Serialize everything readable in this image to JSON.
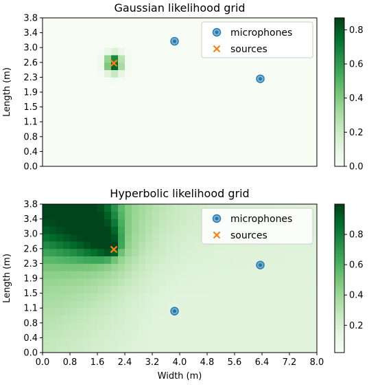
{
  "chart_data": [
    {
      "type": "heatmap",
      "title": "Gaussian likelihood grid",
      "xlabel": "",
      "ylabel": "Length (m)",
      "xlim": [
        0,
        8.0
      ],
      "ylim": [
        0,
        3.8
      ],
      "x_ticks": [],
      "y_ticks": [
        "0.0",
        "0.4",
        "0.8",
        "1.1",
        "1.5",
        "1.9",
        "2.3",
        "2.6",
        "3.0",
        "3.4",
        "3.8"
      ],
      "colormap": "Greens",
      "colorbar": {
        "range": [
          0,
          0.87
        ],
        "ticks": [
          "0.0",
          "0.2",
          "0.4",
          "0.6",
          "0.8"
        ]
      },
      "grid_shape": [
        20,
        40
      ],
      "model": {
        "kind": "gaussian_peak",
        "center": [
          2.08,
          2.64
        ],
        "sigma": [
          0.16,
          0.16
        ],
        "peak": 0.87
      },
      "markers": {
        "microphones": [
          [
            3.85,
            3.2
          ],
          [
            6.35,
            2.24
          ]
        ],
        "sources": [
          [
            2.08,
            2.64
          ]
        ]
      },
      "legend": {
        "position": "top-right",
        "entries": [
          "microphones",
          "sources"
        ]
      }
    },
    {
      "type": "heatmap",
      "title": "Hyperbolic likelihood grid",
      "xlabel": "Width (m)",
      "ylabel": "Length (m)",
      "xlim": [
        0,
        8.0
      ],
      "ylim": [
        0,
        3.8
      ],
      "x_ticks": [
        "0.0",
        "0.8",
        "1.6",
        "2.4",
        "3.2",
        "4.0",
        "4.8",
        "5.6",
        "6.4",
        "7.2",
        "8.0"
      ],
      "y_ticks": [
        "0.0",
        "0.4",
        "0.8",
        "1.1",
        "1.5",
        "1.9",
        "2.3",
        "2.6",
        "3.0",
        "3.4",
        "3.8"
      ],
      "colormap": "Greens",
      "colorbar": {
        "range": [
          0.02,
          1.0
        ],
        "ticks": [
          "0.2",
          "0.4",
          "0.6",
          "0.8"
        ]
      },
      "grid_shape": [
        20,
        40
      ],
      "model": {
        "kind": "hyperbola_ridge",
        "foci": [
          [
            3.85,
            1.06
          ],
          [
            2.08,
            2.64
          ]
        ],
        "sigma": 0.22,
        "falloff": 1.5
      },
      "markers": {
        "microphones": [
          [
            3.85,
            1.06
          ],
          [
            6.35,
            2.24
          ]
        ],
        "sources": [
          [
            2.08,
            2.64
          ]
        ]
      },
      "legend": {
        "position": "top-right",
        "entries": [
          "microphones",
          "sources"
        ]
      }
    }
  ],
  "colors": {
    "microphone": "#1f77b4",
    "source": "#ff7f0e"
  },
  "icons": {
    "microphone": "circle-marker",
    "source": "x-marker"
  }
}
